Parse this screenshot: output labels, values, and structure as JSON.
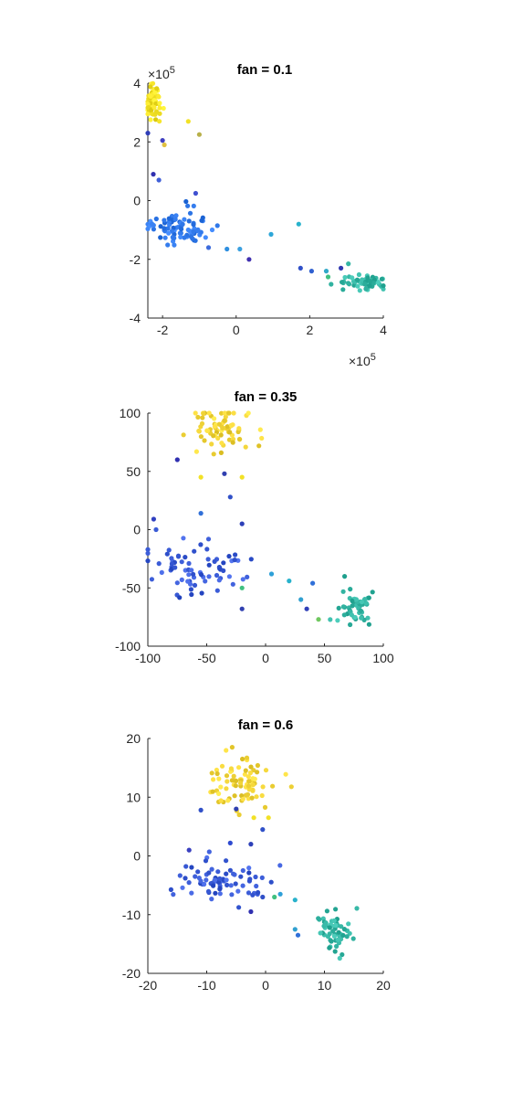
{
  "chart_data": [
    {
      "type": "scatter",
      "title": "fan = 0.1",
      "xlabel": "",
      "ylabel": "",
      "xlim": [
        -2.4,
        4
      ],
      "ylim": [
        -4,
        4
      ],
      "xticks": [
        -2,
        0,
        2,
        4
      ],
      "yticks": [
        -4,
        -2,
        0,
        2,
        4
      ],
      "xtick_labels": [
        "-2",
        "0",
        "2",
        "4"
      ],
      "ytick_labels": [
        "-4",
        "-2",
        "0",
        "2",
        "4"
      ],
      "x_exponent_label": "×10^5",
      "y_exponent_label": "×10^5",
      "axis_scale_note": "values in units of 1e5",
      "grid": false,
      "clusters": [
        {
          "name": "yellow",
          "color": "#f2e126",
          "center": [
            -2.25,
            3.4
          ],
          "spread": [
            0.1,
            0.35
          ],
          "n": 60
        },
        {
          "name": "blue",
          "color": "#2f77e8",
          "center": [
            -1.55,
            -0.9
          ],
          "spread": [
            0.45,
            0.3
          ],
          "n": 80
        },
        {
          "name": "teal",
          "color": "#35b6a4",
          "center": [
            3.45,
            -2.75
          ],
          "spread": [
            0.35,
            0.12
          ],
          "n": 60
        }
      ],
      "extra_points": [
        {
          "x": -2.4,
          "y": 2.3,
          "color": "#2f3db8"
        },
        {
          "x": -1.3,
          "y": 2.7,
          "color": "#f2e126"
        },
        {
          "x": -1.0,
          "y": 2.25,
          "color": "#b8b04a"
        },
        {
          "x": -1.95,
          "y": 1.9,
          "color": "#e0c040"
        },
        {
          "x": -2.0,
          "y": 2.05,
          "color": "#4040c0"
        },
        {
          "x": -2.25,
          "y": 0.9,
          "color": "#3030b0"
        },
        {
          "x": -2.1,
          "y": 0.7,
          "color": "#4060d8"
        },
        {
          "x": -1.1,
          "y": 0.25,
          "color": "#4050d0"
        },
        {
          "x": -0.75,
          "y": -1.6,
          "color": "#3d6cdc"
        },
        {
          "x": -0.25,
          "y": -1.65,
          "color": "#2e8fe0"
        },
        {
          "x": 0.1,
          "y": -1.65,
          "color": "#3aa0e0"
        },
        {
          "x": 0.35,
          "y": -2.0,
          "color": "#4030b0"
        },
        {
          "x": 0.95,
          "y": -1.15,
          "color": "#2ca6d8"
        },
        {
          "x": 1.7,
          "y": -0.8,
          "color": "#28b2cc"
        },
        {
          "x": 1.75,
          "y": -2.3,
          "color": "#3050c8"
        },
        {
          "x": 2.05,
          "y": -2.4,
          "color": "#3060d0"
        },
        {
          "x": 2.45,
          "y": -2.4,
          "color": "#30a8c8"
        },
        {
          "x": 2.5,
          "y": -2.6,
          "color": "#40c080"
        },
        {
          "x": 2.85,
          "y": -2.3,
          "color": "#3038b0"
        },
        {
          "x": 3.05,
          "y": -2.15,
          "color": "#35b6a4"
        }
      ]
    },
    {
      "type": "scatter",
      "title": "fan = 0.35",
      "xlabel": "",
      "ylabel": "",
      "xlim": [
        -100,
        100
      ],
      "ylim": [
        -100,
        100
      ],
      "xticks": [
        -100,
        -50,
        0,
        50,
        100
      ],
      "yticks": [
        -100,
        -50,
        0,
        50,
        100
      ],
      "xtick_labels": [
        "-100",
        "-50",
        "0",
        "50",
        "100"
      ],
      "ytick_labels": [
        "-100",
        "-50",
        "0",
        "50",
        "100"
      ],
      "grid": false,
      "clusters": [
        {
          "name": "yellow",
          "color": "#f2d53a",
          "center": [
            -35,
            88
          ],
          "spread": [
            12,
            10
          ],
          "n": 75
        },
        {
          "name": "blue",
          "color": "#3a5bd6",
          "center": [
            -55,
            -35
          ],
          "spread": [
            22,
            10
          ],
          "n": 70
        },
        {
          "name": "teal",
          "color": "#35b6a4",
          "center": [
            75,
            -68
          ],
          "spread": [
            8,
            8
          ],
          "n": 50
        }
      ],
      "extra_points": [
        {
          "x": -75,
          "y": 60,
          "color": "#3030b0"
        },
        {
          "x": -55,
          "y": 45,
          "color": "#f2e126"
        },
        {
          "x": -20,
          "y": 45,
          "color": "#f2e126"
        },
        {
          "x": -30,
          "y": 28,
          "color": "#3050c8"
        },
        {
          "x": -35,
          "y": 48,
          "color": "#3040b0"
        },
        {
          "x": -55,
          "y": 14,
          "color": "#3070d8"
        },
        {
          "x": -95,
          "y": 9,
          "color": "#3040c0"
        },
        {
          "x": -20,
          "y": 5,
          "color": "#2d40b8"
        },
        {
          "x": -93,
          "y": 0,
          "color": "#3a5bd6"
        },
        {
          "x": -100,
          "y": -17,
          "color": "#3a5bd6"
        },
        {
          "x": 5,
          "y": -38,
          "color": "#2ea0d8"
        },
        {
          "x": 20,
          "y": -44,
          "color": "#28b2cc"
        },
        {
          "x": 40,
          "y": -46,
          "color": "#3070d8"
        },
        {
          "x": 30,
          "y": -60,
          "color": "#30a0d0"
        },
        {
          "x": 35,
          "y": -68,
          "color": "#3040b8"
        },
        {
          "x": 45,
          "y": -77,
          "color": "#70c860"
        },
        {
          "x": -20,
          "y": -68,
          "color": "#3040b0"
        },
        {
          "x": -20,
          "y": -50,
          "color": "#40c080"
        }
      ]
    },
    {
      "type": "scatter",
      "title": "fan = 0.6",
      "xlabel": "",
      "ylabel": "",
      "xlim": [
        -20,
        20
      ],
      "ylim": [
        -20,
        20
      ],
      "xticks": [
        -20,
        -10,
        0,
        10,
        20
      ],
      "yticks": [
        -20,
        -10,
        0,
        10,
        20
      ],
      "xtick_labels": [
        "-20",
        "-10",
        "0",
        "10",
        "20"
      ],
      "ytick_labels": [
        "-20",
        "-10",
        "0",
        "10",
        "20"
      ],
      "grid": false,
      "clusters": [
        {
          "name": "yellow",
          "color": "#f2d53a",
          "center": [
            -4.5,
            12.5
          ],
          "spread": [
            2.8,
            2.0
          ],
          "n": 80
        },
        {
          "name": "blue",
          "color": "#3a5bd6",
          "center": [
            -7.5,
            -4.5
          ],
          "spread": [
            3.2,
            1.8
          ],
          "n": 75
        },
        {
          "name": "teal",
          "color": "#35b6a4",
          "center": [
            11.5,
            -12.5
          ],
          "spread": [
            1.6,
            1.8
          ],
          "n": 55
        }
      ],
      "extra_points": [
        {
          "x": -11,
          "y": 7.8,
          "color": "#3050c8"
        },
        {
          "x": -5,
          "y": 8,
          "color": "#3040b0"
        },
        {
          "x": -2,
          "y": 6.5,
          "color": "#f2e126"
        },
        {
          "x": 0.5,
          "y": 6.5,
          "color": "#f2e126"
        },
        {
          "x": -6,
          "y": 2.2,
          "color": "#2e4ad0"
        },
        {
          "x": -2.5,
          "y": 2,
          "color": "#2d40b8"
        },
        {
          "x": -0.5,
          "y": 4.5,
          "color": "#3050c8"
        },
        {
          "x": -13,
          "y": 1,
          "color": "#3a40c0"
        },
        {
          "x": 2.5,
          "y": -6.5,
          "color": "#2ea0d8"
        },
        {
          "x": 5,
          "y": -7.5,
          "color": "#28b2cc"
        },
        {
          "x": 5,
          "y": -12.5,
          "color": "#30a0d0"
        },
        {
          "x": 5.5,
          "y": -13.5,
          "color": "#3070d8"
        },
        {
          "x": 1.5,
          "y": -7.0,
          "color": "#40c080"
        },
        {
          "x": -2.5,
          "y": -9.5,
          "color": "#3030b0"
        },
        {
          "x": -0.5,
          "y": -7,
          "color": "#3050c8"
        }
      ]
    }
  ]
}
